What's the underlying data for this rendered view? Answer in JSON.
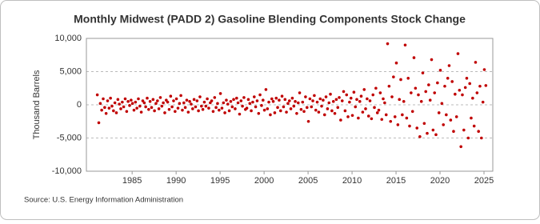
{
  "chart_data": {
    "type": "scatter",
    "title": "Monthly Midwest (PADD 2) Gasoline Blending Components Stock Change",
    "y_label": "Thousand Barrels",
    "source": "Source: U.S. Energy Information Administration",
    "color": "#c00000",
    "grid": true,
    "xlim": [
      1979.8,
      2026.0
    ],
    "xticks": [
      1985,
      1990,
      1995,
      2000,
      2005,
      2010,
      2015,
      2020,
      2025
    ],
    "ylim": [
      -10000,
      10000
    ],
    "yticks": [
      {
        "value": -10000,
        "label": "-10,000"
      },
      {
        "value": -5000,
        "label": "-5,000"
      },
      0,
      {
        "value": 5000,
        "label": "5,000"
      },
      {
        "value": 10000,
        "label": "10,000"
      }
    ],
    "x": [
      1981.04,
      1981.21,
      1981.38,
      1981.54,
      1981.71,
      1981.88,
      1982.04,
      1982.21,
      1982.38,
      1982.54,
      1982.71,
      1982.88,
      1983.04,
      1983.21,
      1983.38,
      1983.54,
      1983.71,
      1983.88,
      1984.04,
      1984.21,
      1984.38,
      1984.54,
      1984.71,
      1984.88,
      1985.04,
      1985.21,
      1985.38,
      1985.54,
      1985.71,
      1985.88,
      1986.04,
      1986.21,
      1986.38,
      1986.54,
      1986.71,
      1986.88,
      1987.04,
      1987.21,
      1987.38,
      1987.54,
      1987.71,
      1987.88,
      1988.04,
      1988.21,
      1988.38,
      1988.54,
      1988.71,
      1988.88,
      1989.04,
      1989.21,
      1989.38,
      1989.54,
      1989.71,
      1989.88,
      1990.04,
      1990.21,
      1990.38,
      1990.54,
      1990.71,
      1990.88,
      1991.04,
      1991.21,
      1991.38,
      1991.54,
      1991.71,
      1991.88,
      1992.04,
      1992.21,
      1992.38,
      1992.54,
      1992.71,
      1992.88,
      1993.04,
      1993.21,
      1993.38,
      1993.54,
      1993.71,
      1993.88,
      1994.04,
      1994.21,
      1994.38,
      1994.54,
      1994.71,
      1994.88,
      1995.04,
      1995.21,
      1995.38,
      1995.54,
      1995.71,
      1995.88,
      1996.04,
      1996.21,
      1996.38,
      1996.54,
      1996.71,
      1996.88,
      1997.04,
      1997.21,
      1997.38,
      1997.54,
      1997.71,
      1997.88,
      1998.04,
      1998.21,
      1998.38,
      1998.54,
      1998.71,
      1998.88,
      1999.04,
      1999.21,
      1999.38,
      1999.54,
      1999.71,
      1999.88,
      2000.04,
      2000.21,
      2000.38,
      2000.54,
      2000.71,
      2000.88,
      2001.04,
      2001.21,
      2001.38,
      2001.54,
      2001.71,
      2001.88,
      2002.04,
      2002.21,
      2002.38,
      2002.54,
      2002.71,
      2002.88,
      2003.04,
      2003.21,
      2003.38,
      2003.54,
      2003.71,
      2003.88,
      2004.04,
      2004.21,
      2004.38,
      2004.54,
      2004.71,
      2004.88,
      2005.04,
      2005.21,
      2005.38,
      2005.54,
      2005.71,
      2005.88,
      2006.04,
      2006.21,
      2006.38,
      2006.54,
      2006.71,
      2006.88,
      2007.04,
      2007.21,
      2007.38,
      2007.54,
      2007.71,
      2007.88,
      2008.04,
      2008.21,
      2008.38,
      2008.54,
      2008.71,
      2008.88,
      2009.04,
      2009.21,
      2009.38,
      2009.54,
      2009.71,
      2009.88,
      2010.04,
      2010.21,
      2010.38,
      2010.54,
      2010.71,
      2010.88,
      2011.04,
      2011.21,
      2011.38,
      2011.54,
      2011.71,
      2011.88,
      2012.04,
      2012.21,
      2012.38,
      2012.54,
      2012.71,
      2012.88,
      2013.04,
      2013.21,
      2013.38,
      2013.54,
      2013.71,
      2013.88,
      2014.04,
      2014.21,
      2014.38,
      2014.54,
      2014.71,
      2014.88,
      2015.04,
      2015.21,
      2015.38,
      2015.54,
      2015.71,
      2015.88,
      2016.04,
      2016.21,
      2016.38,
      2016.54,
      2016.71,
      2016.88,
      2017.04,
      2017.21,
      2017.38,
      2017.54,
      2017.71,
      2017.88,
      2018.04,
      2018.21,
      2018.38,
      2018.54,
      2018.71,
      2018.88,
      2019.04,
      2019.21,
      2019.38,
      2019.54,
      2019.71,
      2019.88,
      2020.04,
      2020.21,
      2020.38,
      2020.54,
      2020.71,
      2020.88,
      2021.04,
      2021.21,
      2021.38,
      2021.54,
      2021.71,
      2021.88,
      2022.04,
      2022.21,
      2022.38,
      2022.54,
      2022.71,
      2022.88,
      2023.04,
      2023.21,
      2023.38,
      2023.54,
      2023.71,
      2023.88,
      2024.04,
      2024.21,
      2024.38,
      2024.54,
      2024.71,
      2024.88,
      2025.04,
      2025.21
    ],
    "values": [
      1500,
      -2700,
      200,
      -800,
      900,
      -400,
      -1300,
      600,
      -500,
      1000,
      -200,
      -900,
      300,
      -1200,
      800,
      100,
      -600,
      400,
      -300,
      900,
      -1000,
      500,
      -100,
      700,
      200,
      -800,
      400,
      -500,
      900,
      -200,
      -1100,
      600,
      300,
      -300,
      1000,
      -700,
      500,
      -400,
      800,
      -900,
      200,
      600,
      -600,
      1100,
      -200,
      300,
      -1200,
      700,
      400,
      -700,
      1300,
      -300,
      600,
      -1000,
      900,
      -500,
      200,
      1400,
      -800,
      300,
      -400,
      700,
      -1100,
      500,
      100,
      -600,
      800,
      -300,
      600,
      -900,
      1200,
      -200,
      -700,
      400,
      -200,
      900,
      -500,
      300,
      600,
      -1000,
      1100,
      -400,
      200,
      -800,
      1700,
      -500,
      300,
      -1200,
      700,
      100,
      -900,
      500,
      -300,
      800,
      -600,
      1000,
      300,
      -1400,
      600,
      -200,
      1100,
      -700,
      -500,
      800,
      200,
      -900,
      400,
      1200,
      -300,
      600,
      -1300,
      1500,
      -100,
      700,
      -800,
      2300,
      -600,
      400,
      -1500,
      900,
      500,
      -1200,
      1000,
      -400,
      700,
      -900,
      1300,
      -300,
      800,
      -1100,
      200,
      600,
      -600,
      1000,
      -200,
      500,
      -1300,
      300,
      1800,
      -700,
      400,
      -1000,
      1200,
      -400,
      -2500,
      900,
      -300,
      600,
      1400,
      -800,
      400,
      -1100,
      900,
      -200,
      700,
      -1500,
      1200,
      -600,
      300,
      1600,
      -900,
      500,
      -1300,
      800,
      -400,
      1100,
      -2300,
      600,
      2000,
      -900,
      1500,
      -1800,
      400,
      1000,
      -1600,
      1900,
      -300,
      800,
      -2000,
      500,
      1300,
      -1100,
      2300,
      -600,
      900,
      -1700,
      600,
      -2100,
      1500,
      -400,
      2500,
      -1200,
      -800,
      1800,
      -2200,
      900,
      300,
      -1500,
      9200,
      2800,
      -2500,
      1200,
      4200,
      -1800,
      6300,
      -3000,
      800,
      3800,
      -1500,
      500,
      9000,
      -2000,
      4000,
      -3200,
      1800,
      -1000,
      7100,
      2500,
      -3500,
      1500,
      -4800,
      500,
      4800,
      -2800,
      2000,
      -4300,
      3000,
      700,
      6800,
      -3800,
      1800,
      -4500,
      3300,
      -1200,
      5200,
      200,
      -3000,
      2800,
      -1500,
      4000,
      5900,
      -2300,
      3500,
      -4000,
      1600,
      -1800,
      7700,
      2200,
      -6300,
      1500,
      -3800,
      2600,
      4000,
      -5000,
      3200,
      -2000,
      1000,
      -3200,
      6400,
      1800,
      -4000,
      2800,
      -5000,
      400,
      5300,
      2900
    ]
  }
}
